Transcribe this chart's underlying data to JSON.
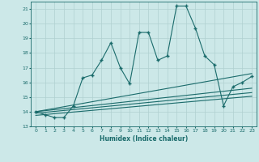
{
  "xlabel": "Humidex (Indice chaleur)",
  "bg_color": "#cce8e8",
  "line_color": "#1a6b6b",
  "grid_color": "#b0d0d0",
  "xlim": [
    -0.5,
    23.5
  ],
  "ylim": [
    13,
    21.5
  ],
  "yticks": [
    13,
    14,
    15,
    16,
    17,
    18,
    19,
    20,
    21
  ],
  "xticks": [
    0,
    1,
    2,
    3,
    4,
    5,
    6,
    7,
    8,
    9,
    10,
    11,
    12,
    13,
    14,
    15,
    16,
    17,
    18,
    19,
    20,
    21,
    22,
    23
  ],
  "zigzag_x": [
    0,
    1,
    2,
    3,
    4,
    5,
    6,
    7,
    8,
    9,
    10,
    11,
    12,
    13,
    14,
    15,
    16,
    17,
    18,
    19,
    20,
    21,
    22,
    23
  ],
  "zigzag_y": [
    14.0,
    13.8,
    13.6,
    13.6,
    14.4,
    16.3,
    16.5,
    17.5,
    18.7,
    17.0,
    15.9,
    19.4,
    19.4,
    17.5,
    17.8,
    21.2,
    21.2,
    19.7,
    17.8,
    17.2,
    14.4,
    15.7,
    16.0,
    16.4
  ],
  "line1_x": [
    0,
    23
  ],
  "line1_y": [
    14.0,
    16.6
  ],
  "line2_x": [
    0,
    23
  ],
  "line2_y": [
    14.0,
    15.6
  ],
  "line3_x": [
    0,
    23
  ],
  "line3_y": [
    13.9,
    15.3
  ],
  "line4_x": [
    0,
    23
  ],
  "line4_y": [
    13.75,
    15.05
  ]
}
